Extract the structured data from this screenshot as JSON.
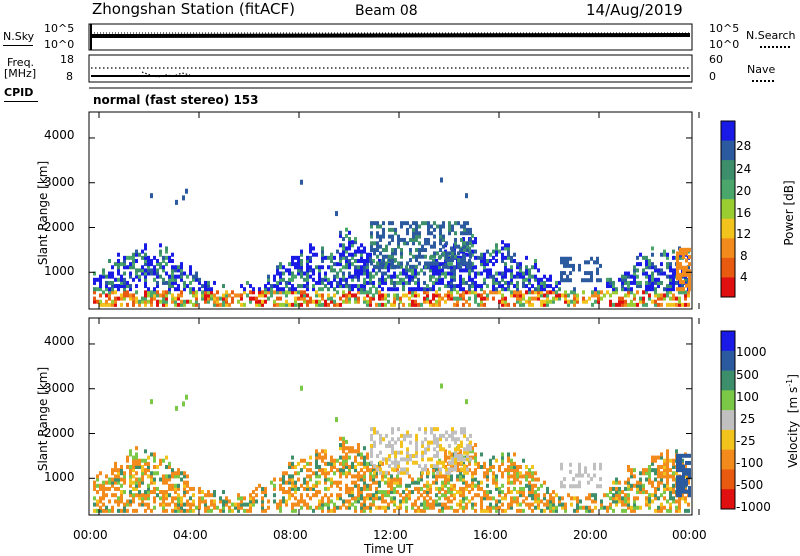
{
  "header": {
    "station": "Zhongshan Station (fitACF)",
    "beam": "Beam 08",
    "date": "14/Aug/2019"
  },
  "top_panel": {
    "left_label": "N.Sky",
    "left_ticks": [
      "10^5",
      "10^0"
    ],
    "right_label": "N.Search",
    "right_ticks": [
      "10^5",
      "10^0"
    ]
  },
  "freq_panel": {
    "left_label_1": "Freq.",
    "left_label_2": "[MHz]",
    "left_ticks": [
      "18",
      "8"
    ],
    "right_label": "Nave",
    "right_ticks": [
      "60",
      "0"
    ]
  },
  "cpid": {
    "label": "CPID",
    "value": "normal (fast stereo) 153"
  },
  "colors": {
    "power": [
      "#1a1ae6",
      "#2c5a9e",
      "#3c8f6a",
      "#4aa66a",
      "#9acd32",
      "#f2c31c",
      "#f28a1c",
      "#e85a10",
      "#e01010"
    ],
    "velocity": [
      "#1a1ae6",
      "#2c5a9e",
      "#3c8f6a",
      "#7ac846",
      "#c0c0c0",
      "#f2c31c",
      "#f28a1c",
      "#e85a10",
      "#e01010"
    ]
  },
  "chart_data": [
    {
      "type": "heatmap",
      "ylabel": "Slant Range [km]",
      "y_ticks": [
        "4000",
        "3000",
        "2000",
        "1000"
      ],
      "y_tick_values": [
        4000,
        3000,
        2000,
        1000
      ],
      "ylim": [
        180,
        4580
      ],
      "x_ticks": [
        "00:00",
        "04:00",
        "08:00",
        "12:00",
        "16:00",
        "20:00",
        "00:00"
      ],
      "colorbar": {
        "label": "Power [dB]",
        "ticks": [
          "28",
          "24",
          "20",
          "16",
          "12",
          "8",
          "4"
        ]
      }
    },
    {
      "type": "heatmap",
      "ylabel": "Slant Range [km]",
      "y_ticks": [
        "4000",
        "3000",
        "2000",
        "1000"
      ],
      "y_tick_values": [
        4000,
        3000,
        2000,
        1000
      ],
      "ylim": [
        180,
        4580
      ],
      "x_ticks": [
        "00:00",
        "04:00",
        "08:00",
        "12:00",
        "16:00",
        "20:00",
        "00:00"
      ],
      "xlabel": "Time UT",
      "colorbar": {
        "label": "Velocity",
        "unit_base": "[m s",
        "unit_exp": "-1",
        "unit_close": "]",
        "ticks": [
          "1000",
          "500",
          "100",
          "25",
          "-25",
          "-100",
          "-500",
          "-1000"
        ]
      }
    }
  ]
}
